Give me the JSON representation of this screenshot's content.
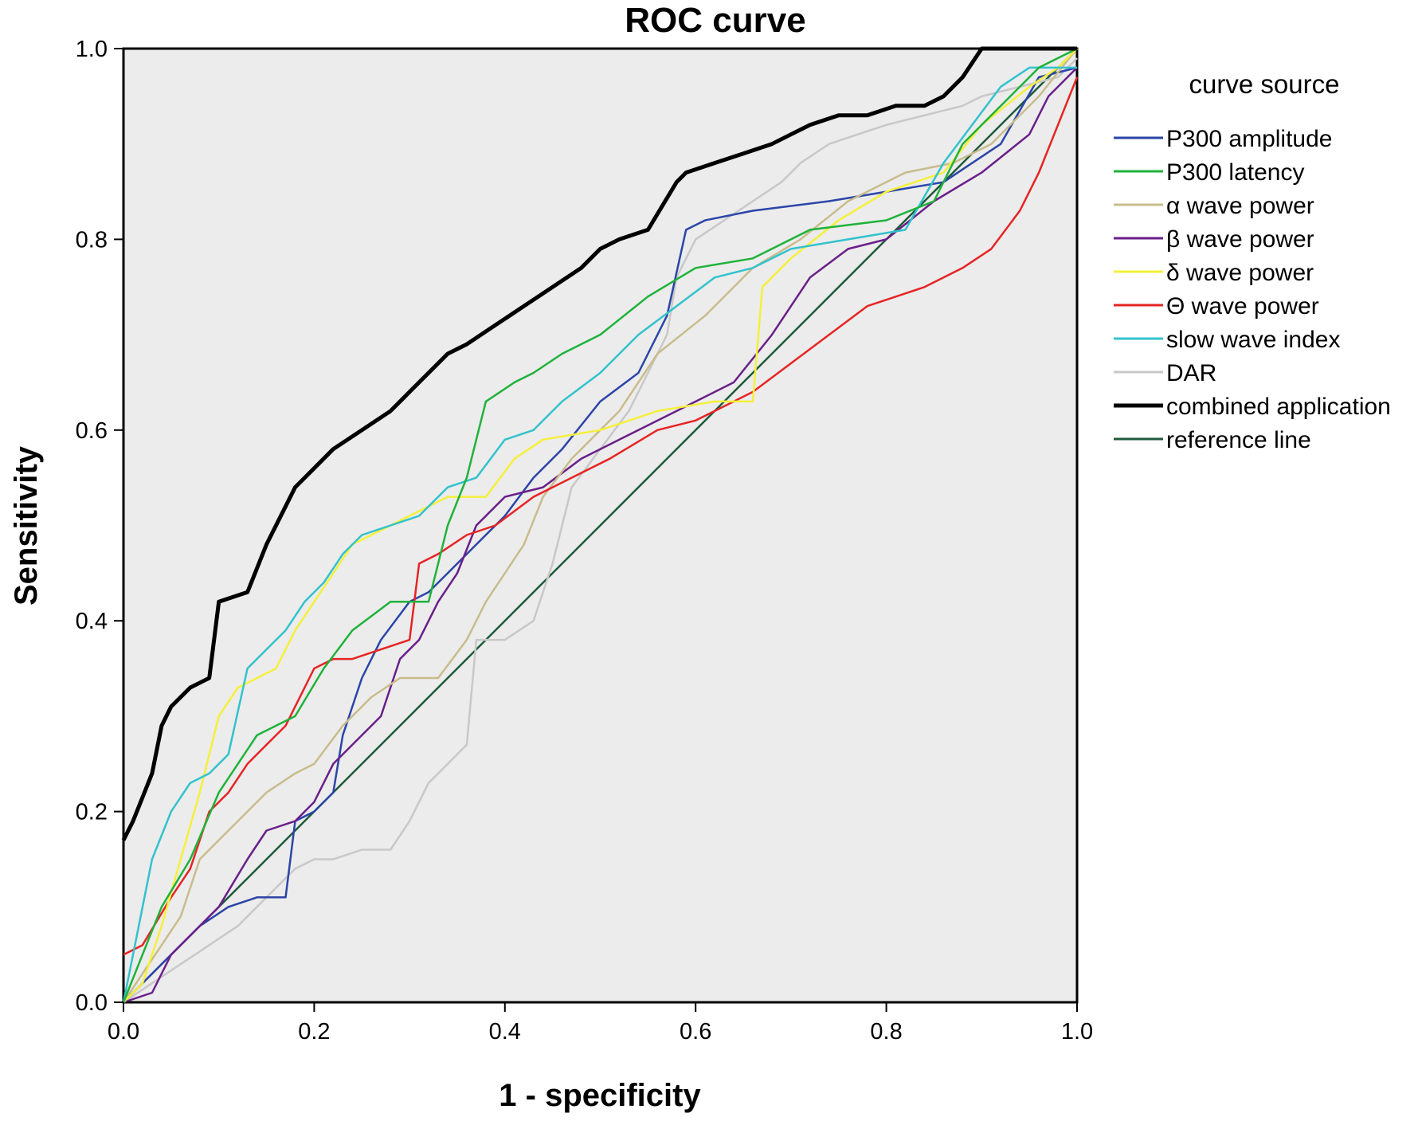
{
  "chart_data": {
    "type": "line",
    "title": "ROC curve",
    "xlabel": "1 - specificity",
    "ylabel": "Sensitivity",
    "xlim": [
      0,
      1
    ],
    "ylim": [
      0,
      1
    ],
    "x_ticks": [
      "0.0",
      "0.2",
      "0.4",
      "0.6",
      "0.8",
      "1.0"
    ],
    "y_ticks": [
      "0.0",
      "0.2",
      "0.4",
      "0.6",
      "0.8",
      "1.0"
    ],
    "grid": false,
    "plot_background": "#ececec",
    "legend": {
      "title": "curve source",
      "position": "right"
    },
    "series": [
      {
        "name": "P300 amplitude",
        "color": "#2b45a8",
        "x": [
          0,
          0.02,
          0.05,
          0.08,
          0.11,
          0.14,
          0.17,
          0.18,
          0.2,
          0.22,
          0.23,
          0.25,
          0.27,
          0.3,
          0.32,
          0.34,
          0.37,
          0.4,
          0.43,
          0.46,
          0.5,
          0.54,
          0.57,
          0.59,
          0.61,
          0.66,
          0.74,
          0.8,
          0.86,
          0.92,
          0.96,
          1.0
        ],
        "y": [
          0,
          0.02,
          0.05,
          0.08,
          0.1,
          0.11,
          0.11,
          0.19,
          0.2,
          0.22,
          0.28,
          0.34,
          0.38,
          0.42,
          0.43,
          0.45,
          0.48,
          0.51,
          0.55,
          0.58,
          0.63,
          0.66,
          0.72,
          0.81,
          0.82,
          0.83,
          0.84,
          0.85,
          0.86,
          0.9,
          0.97,
          0.98
        ]
      },
      {
        "name": "P300 latency",
        "color": "#1fb23a",
        "x": [
          0,
          0.02,
          0.04,
          0.07,
          0.1,
          0.14,
          0.18,
          0.21,
          0.24,
          0.28,
          0.32,
          0.34,
          0.36,
          0.38,
          0.41,
          0.43,
          0.46,
          0.5,
          0.55,
          0.6,
          0.66,
          0.72,
          0.8,
          0.85,
          0.87,
          0.88,
          0.9,
          0.93,
          0.96,
          1.0
        ],
        "y": [
          0,
          0.05,
          0.1,
          0.15,
          0.22,
          0.28,
          0.3,
          0.35,
          0.39,
          0.42,
          0.42,
          0.5,
          0.55,
          0.63,
          0.65,
          0.66,
          0.68,
          0.7,
          0.74,
          0.77,
          0.78,
          0.81,
          0.82,
          0.84,
          0.88,
          0.9,
          0.92,
          0.95,
          0.98,
          1.0
        ]
      },
      {
        "name": "α wave power",
        "color": "#c8bc8c",
        "x": [
          0,
          0.02,
          0.04,
          0.06,
          0.08,
          0.1,
          0.13,
          0.15,
          0.18,
          0.2,
          0.23,
          0.26,
          0.29,
          0.33,
          0.36,
          0.38,
          0.4,
          0.42,
          0.44,
          0.47,
          0.52,
          0.56,
          0.61,
          0.66,
          0.71,
          0.76,
          0.82,
          0.87,
          0.91,
          0.96,
          1.0
        ],
        "y": [
          0,
          0.03,
          0.06,
          0.09,
          0.15,
          0.17,
          0.2,
          0.22,
          0.24,
          0.25,
          0.29,
          0.32,
          0.34,
          0.34,
          0.38,
          0.42,
          0.45,
          0.48,
          0.53,
          0.57,
          0.62,
          0.68,
          0.72,
          0.77,
          0.8,
          0.84,
          0.87,
          0.88,
          0.9,
          0.95,
          1.0
        ]
      },
      {
        "name": "β wave power",
        "color": "#6a1f8a",
        "x": [
          0,
          0.03,
          0.05,
          0.08,
          0.1,
          0.13,
          0.15,
          0.18,
          0.2,
          0.22,
          0.25,
          0.27,
          0.29,
          0.31,
          0.33,
          0.35,
          0.37,
          0.4,
          0.44,
          0.48,
          0.52,
          0.58,
          0.64,
          0.68,
          0.72,
          0.76,
          0.8,
          0.85,
          0.9,
          0.95,
          0.97,
          1.0
        ],
        "y": [
          0,
          0.01,
          0.05,
          0.08,
          0.1,
          0.15,
          0.18,
          0.19,
          0.21,
          0.25,
          0.28,
          0.3,
          0.36,
          0.38,
          0.42,
          0.45,
          0.5,
          0.53,
          0.54,
          0.57,
          0.59,
          0.62,
          0.65,
          0.7,
          0.76,
          0.79,
          0.8,
          0.84,
          0.87,
          0.91,
          0.95,
          0.98
        ]
      },
      {
        "name": "δ wave power",
        "color": "#f5f03b",
        "x": [
          0,
          0.02,
          0.04,
          0.06,
          0.08,
          0.1,
          0.12,
          0.14,
          0.16,
          0.18,
          0.2,
          0.22,
          0.24,
          0.26,
          0.28,
          0.3,
          0.32,
          0.34,
          0.38,
          0.41,
          0.44,
          0.5,
          0.56,
          0.62,
          0.66,
          0.67,
          0.7,
          0.75,
          0.8,
          0.86,
          0.9,
          0.95,
          0.98,
          1.0
        ],
        "y": [
          0,
          0.02,
          0.08,
          0.15,
          0.22,
          0.3,
          0.33,
          0.34,
          0.35,
          0.39,
          0.42,
          0.45,
          0.48,
          0.49,
          0.5,
          0.51,
          0.52,
          0.53,
          0.53,
          0.57,
          0.59,
          0.6,
          0.62,
          0.63,
          0.63,
          0.75,
          0.78,
          0.82,
          0.85,
          0.87,
          0.92,
          0.96,
          0.98,
          1.0
        ]
      },
      {
        "name": "Θ wave power",
        "color": "#e62424",
        "x": [
          0,
          0.02,
          0.05,
          0.07,
          0.09,
          0.11,
          0.13,
          0.15,
          0.17,
          0.19,
          0.2,
          0.22,
          0.24,
          0.27,
          0.3,
          0.31,
          0.33,
          0.36,
          0.39,
          0.43,
          0.47,
          0.51,
          0.56,
          0.6,
          0.62,
          0.66,
          0.7,
          0.74,
          0.78,
          0.84,
          0.88,
          0.91,
          0.94,
          0.96,
          1.0
        ],
        "y": [
          0.05,
          0.06,
          0.11,
          0.14,
          0.2,
          0.22,
          0.25,
          0.27,
          0.29,
          0.33,
          0.35,
          0.36,
          0.36,
          0.37,
          0.38,
          0.46,
          0.47,
          0.49,
          0.5,
          0.53,
          0.55,
          0.57,
          0.6,
          0.61,
          0.62,
          0.64,
          0.67,
          0.7,
          0.73,
          0.75,
          0.77,
          0.79,
          0.83,
          0.87,
          0.97
        ]
      },
      {
        "name": "slow wave index",
        "color": "#33c2cc",
        "x": [
          0,
          0.01,
          0.03,
          0.05,
          0.07,
          0.09,
          0.11,
          0.13,
          0.15,
          0.17,
          0.19,
          0.21,
          0.23,
          0.25,
          0.28,
          0.31,
          0.34,
          0.37,
          0.4,
          0.43,
          0.46,
          0.5,
          0.54,
          0.58,
          0.62,
          0.66,
          0.7,
          0.76,
          0.82,
          0.86,
          0.89,
          0.92,
          0.95,
          1.0
        ],
        "y": [
          0,
          0.05,
          0.15,
          0.2,
          0.23,
          0.24,
          0.26,
          0.35,
          0.37,
          0.39,
          0.42,
          0.44,
          0.47,
          0.49,
          0.5,
          0.51,
          0.54,
          0.55,
          0.59,
          0.6,
          0.63,
          0.66,
          0.7,
          0.73,
          0.76,
          0.77,
          0.79,
          0.8,
          0.81,
          0.88,
          0.92,
          0.96,
          0.98,
          0.98
        ]
      },
      {
        "name": "DAR",
        "color": "#c8c8c8",
        "x": [
          0,
          0.03,
          0.06,
          0.09,
          0.12,
          0.15,
          0.18,
          0.2,
          0.22,
          0.25,
          0.28,
          0.3,
          0.32,
          0.34,
          0.36,
          0.37,
          0.4,
          0.43,
          0.45,
          0.47,
          0.5,
          0.53,
          0.55,
          0.57,
          0.58,
          0.6,
          0.63,
          0.66,
          0.69,
          0.71,
          0.74,
          0.77,
          0.8,
          0.84,
          0.88,
          0.9,
          0.94,
          0.98,
          1.0
        ],
        "y": [
          0,
          0.02,
          0.04,
          0.06,
          0.08,
          0.11,
          0.14,
          0.15,
          0.15,
          0.16,
          0.16,
          0.19,
          0.23,
          0.25,
          0.27,
          0.38,
          0.38,
          0.4,
          0.46,
          0.54,
          0.58,
          0.62,
          0.66,
          0.7,
          0.76,
          0.8,
          0.82,
          0.84,
          0.86,
          0.88,
          0.9,
          0.91,
          0.92,
          0.93,
          0.94,
          0.95,
          0.96,
          0.97,
          0.99
        ]
      },
      {
        "name": "combined application",
        "color": "#000000",
        "x": [
          0,
          0.01,
          0.03,
          0.04,
          0.05,
          0.07,
          0.09,
          0.1,
          0.13,
          0.15,
          0.17,
          0.18,
          0.2,
          0.22,
          0.25,
          0.28,
          0.3,
          0.32,
          0.34,
          0.36,
          0.39,
          0.42,
          0.45,
          0.48,
          0.5,
          0.52,
          0.55,
          0.58,
          0.59,
          0.62,
          0.65,
          0.68,
          0.7,
          0.72,
          0.75,
          0.78,
          0.81,
          0.84,
          0.86,
          0.88,
          0.9,
          0.91,
          0.94,
          0.97,
          1.0
        ],
        "y": [
          0.17,
          0.19,
          0.24,
          0.29,
          0.31,
          0.33,
          0.34,
          0.42,
          0.43,
          0.48,
          0.52,
          0.54,
          0.56,
          0.58,
          0.6,
          0.62,
          0.64,
          0.66,
          0.68,
          0.69,
          0.71,
          0.73,
          0.75,
          0.77,
          0.79,
          0.8,
          0.81,
          0.86,
          0.87,
          0.88,
          0.89,
          0.9,
          0.91,
          0.92,
          0.93,
          0.93,
          0.94,
          0.94,
          0.95,
          0.97,
          1.0,
          1.0,
          1.0,
          1.0,
          1.0
        ]
      },
      {
        "name": "reference line",
        "color": "#1e5a3a",
        "x": [
          0,
          1
        ],
        "y": [
          0,
          1
        ]
      }
    ]
  }
}
